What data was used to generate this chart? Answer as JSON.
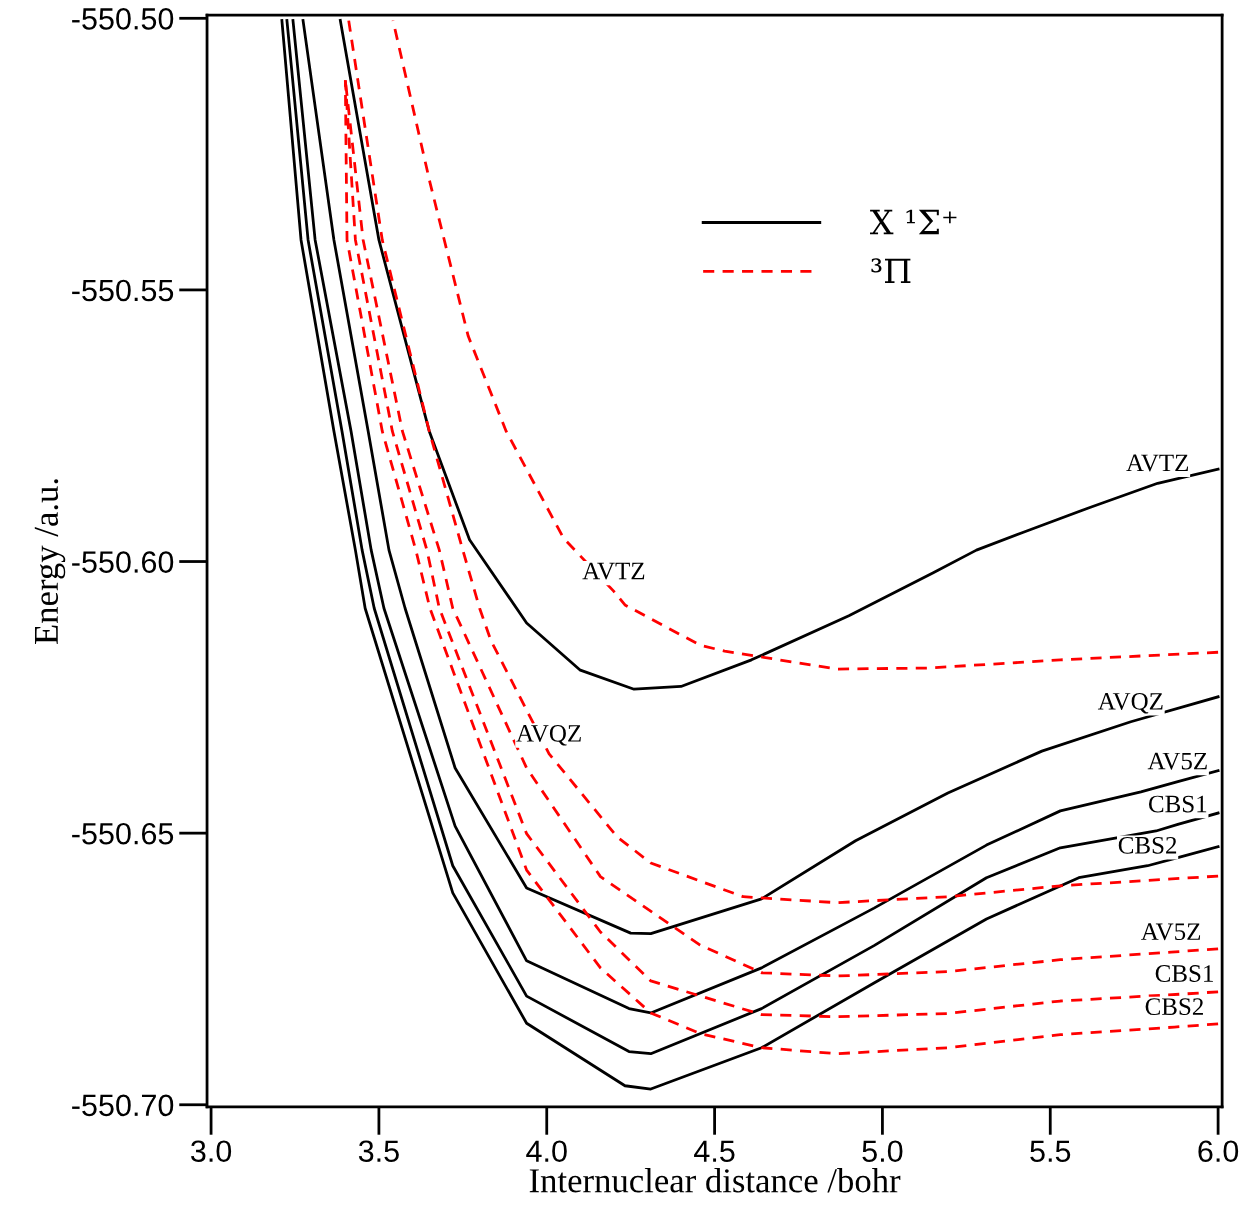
{
  "chart_data": {
    "type": "line",
    "xlabel": "Internuclear distance /bohr",
    "ylabel": "Energy /a.u.",
    "xlim": [
      2.988,
      6.012
    ],
    "ylim": [
      -550.7004,
      -550.4994
    ],
    "xticks": [
      {
        "value": 3,
        "label": "3.0"
      },
      {
        "value": 3.5,
        "label": "3.5"
      },
      {
        "value": 4,
        "label": "4.0"
      },
      {
        "value": 4.5,
        "label": "4.5"
      },
      {
        "value": 5,
        "label": "5.0"
      },
      {
        "value": 5.5,
        "label": "5.5"
      },
      {
        "value": 6,
        "label": "6.0"
      }
    ],
    "yticks": [
      {
        "value": -550.7,
        "label": "-550.70"
      },
      {
        "value": -550.65,
        "label": "-550.65"
      },
      {
        "value": -550.6,
        "label": "-550.60"
      },
      {
        "value": -550.55,
        "label": "-550.55"
      },
      {
        "value": -550.5,
        "label": "-550.50"
      }
    ],
    "grid": false,
    "legend": "top right",
    "marker": "none",
    "series": [
      {
        "name": "X ¹Σ⁺",
        "color": "#000000",
        "line_style": "solid",
        "x": [
          3.385,
          3.5,
          3.65,
          3.77,
          3.94,
          4.1,
          4.26,
          4.4,
          4.61,
          4.9,
          5.15,
          5.28,
          5.42,
          5.62,
          5.82,
          6.0
        ],
        "values": [
          -550.5004,
          -550.5408,
          -550.576,
          -550.596,
          -550.6113,
          -550.62,
          -550.6235,
          -550.623,
          -550.6181,
          -550.61,
          -550.6021,
          -550.5979,
          -550.5946,
          -550.59,
          -550.5856,
          -550.583
        ]
      },
      {
        "color": "#000000",
        "line_style": "solid",
        "x": [
          3.274,
          3.366,
          3.468,
          3.53,
          3.578,
          3.727,
          3.94,
          4.25,
          4.31,
          4.64,
          4.92,
          5.195,
          5.475,
          5.74,
          6.0
        ],
        "values": [
          -550.5004,
          -550.5408,
          -550.576,
          -550.5979,
          -550.6086,
          -550.638,
          -550.6601,
          -550.6684,
          -550.6685,
          -550.6621,
          -550.6514,
          -550.6426,
          -550.6349,
          -550.6295,
          -550.6249
        ]
      },
      {
        "color": "#000000",
        "line_style": "solid",
        "x": [
          3.244,
          3.31,
          3.417,
          3.477,
          3.515,
          3.727,
          3.94,
          4.245,
          4.31,
          4.64,
          4.975,
          5.31,
          5.53,
          5.77,
          5.88,
          6.0
        ],
        "values": [
          -550.5004,
          -550.5408,
          -550.576,
          -550.5979,
          -550.6086,
          -550.6487,
          -550.6735,
          -550.6823,
          -550.6831,
          -550.6748,
          -550.6638,
          -550.6522,
          -550.6459,
          -550.6424,
          -550.6405,
          -550.6385
        ]
      },
      {
        "color": "#000000",
        "line_style": "solid",
        "x": [
          3.226,
          3.289,
          3.39,
          3.45,
          3.486,
          3.72,
          3.94,
          4.245,
          4.31,
          4.64,
          4.975,
          5.31,
          5.53,
          5.815,
          5.88,
          6.0
        ],
        "values": [
          -550.5004,
          -550.5408,
          -550.576,
          -550.5979,
          -550.6086,
          -550.656,
          -550.68,
          -550.6902,
          -550.6906,
          -550.6823,
          -550.6707,
          -550.6582,
          -550.6527,
          -550.6496,
          -550.6484,
          -550.6463
        ]
      },
      {
        "color": "#000000",
        "line_style": "solid",
        "x": [
          3.211,
          3.268,
          3.366,
          3.43,
          3.459,
          3.72,
          3.94,
          4.233,
          4.31,
          4.64,
          4.975,
          5.31,
          5.585,
          5.79,
          5.88,
          6.0
        ],
        "values": [
          -550.5004,
          -550.5408,
          -550.576,
          -550.5979,
          -550.6086,
          -550.661,
          -550.685,
          -550.6965,
          -550.6971,
          -550.6895,
          -550.6776,
          -550.6658,
          -550.6582,
          -550.656,
          -550.6545,
          -550.6525
        ]
      },
      {
        "name": "³Π",
        "color": "#ff0000",
        "line_style": "dashed",
        "x": [
          3.542,
          3.652,
          3.766,
          3.879,
          4.05,
          4.2,
          4.233,
          4.457,
          4.53,
          4.865,
          5.14,
          5.53,
          6.0
        ],
        "values": [
          -550.5004,
          -550.5302,
          -550.5585,
          -550.576,
          -550.5957,
          -550.6055,
          -550.608,
          -550.6154,
          -550.6165,
          -550.6198,
          -550.6196,
          -550.6181,
          -550.6167
        ]
      },
      {
        "color": "#ff0000",
        "line_style": "dashed",
        "x": [
          3.41,
          3.51,
          3.65,
          3.75,
          3.8,
          3.834,
          4.007,
          4.21,
          4.31,
          4.585,
          4.865,
          5.195,
          5.53,
          6.0
        ],
        "values": [
          -550.5004,
          -550.5408,
          -550.576,
          -550.5979,
          -550.6086,
          -550.6146,
          -550.6354,
          -550.6507,
          -550.6555,
          -550.6617,
          -550.6628,
          -550.6617,
          -550.6597,
          -550.6579
        ]
      },
      {
        "color": "#ff0000",
        "line_style": "dashed",
        "x": [
          3.4,
          3.453,
          3.57,
          3.68,
          3.72,
          3.94,
          4.16,
          4.457,
          4.64,
          4.865,
          5.195,
          5.53,
          5.86,
          6.0
        ],
        "values": [
          -550.5114,
          -550.5408,
          -550.576,
          -550.5979,
          -550.6086,
          -550.638,
          -550.658,
          -550.6706,
          -550.6757,
          -550.6763,
          -550.6755,
          -550.6733,
          -550.6719,
          -550.6713
        ]
      },
      {
        "color": "#ff0000",
        "line_style": "dashed",
        "x": [
          3.4,
          3.43,
          3.54,
          3.643,
          3.68,
          3.94,
          4.16,
          4.31,
          4.64,
          4.865,
          5.195,
          5.53,
          5.9,
          6.0
        ],
        "values": [
          -550.5114,
          -550.5408,
          -550.576,
          -550.5979,
          -550.6086,
          -550.6501,
          -550.6682,
          -550.6772,
          -550.6834,
          -550.6838,
          -550.6832,
          -550.6809,
          -550.6796,
          -550.6792
        ]
      },
      {
        "color": "#ff0000",
        "line_style": "dashed",
        "x": [
          3.4,
          3.405,
          3.51,
          3.61,
          3.652,
          3.94,
          4.16,
          4.31,
          4.457,
          4.64,
          4.865,
          5.195,
          5.53,
          5.87,
          6.0
        ],
        "values": [
          -550.5114,
          -550.5408,
          -550.576,
          -550.5979,
          -550.6086,
          -550.6568,
          -550.6748,
          -550.6831,
          -550.6869,
          -550.6895,
          -550.6906,
          -550.6895,
          -550.6871,
          -550.6857,
          -550.6851
        ]
      }
    ],
    "annotations": [
      {
        "text": "AVTZ",
        "x": 4.2,
        "y": -550.6055
      },
      {
        "text": "AVQZ",
        "x": 4.007,
        "y": -550.6354
      },
      {
        "text": "AVTZ",
        "x": 5.82,
        "y": -550.5856
      },
      {
        "text": "AVQZ",
        "x": 5.74,
        "y": -550.6295
      },
      {
        "text": "AV5Z",
        "x": 5.88,
        "y": -550.6405
      },
      {
        "text": "CBS1",
        "x": 5.88,
        "y": -550.6484
      },
      {
        "text": "CBS2",
        "x": 5.79,
        "y": -550.656
      },
      {
        "text": "AV5Z",
        "x": 5.86,
        "y": -550.6719
      },
      {
        "text": "CBS1",
        "x": 5.9,
        "y": -550.6796
      },
      {
        "text": "CBS2",
        "x": 5.87,
        "y": -550.6857
      }
    ]
  }
}
